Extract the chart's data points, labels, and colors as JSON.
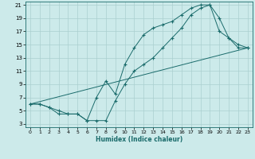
{
  "xlabel": "Humidex (Indice chaleur)",
  "bg_color": "#cceaea",
  "grid_color": "#aacfcf",
  "line_color": "#1a6b6b",
  "xlim": [
    -0.5,
    23.5
  ],
  "ylim": [
    2.5,
    21.5
  ],
  "xticks": [
    0,
    1,
    2,
    3,
    4,
    5,
    6,
    7,
    8,
    9,
    10,
    11,
    12,
    13,
    14,
    15,
    16,
    17,
    18,
    19,
    20,
    21,
    22,
    23
  ],
  "yticks": [
    3,
    5,
    7,
    9,
    11,
    13,
    15,
    17,
    19,
    21
  ],
  "line1_x": [
    0,
    1,
    2,
    3,
    4,
    5,
    6,
    7,
    8,
    9,
    10,
    11,
    12,
    13,
    14,
    15,
    16,
    17,
    18,
    19,
    20,
    21,
    22,
    23
  ],
  "line1_y": [
    6,
    6,
    5.5,
    4.5,
    4.5,
    4.5,
    3.5,
    7.0,
    9.5,
    7.5,
    12,
    14.5,
    16.5,
    17.5,
    18,
    18.5,
    19.5,
    20.5,
    21,
    21,
    17,
    16,
    15,
    14.5
  ],
  "line2_x": [
    0,
    1,
    2,
    3,
    4,
    5,
    6,
    7,
    8,
    9,
    10,
    11,
    12,
    13,
    14,
    15,
    16,
    17,
    18,
    19,
    20,
    21,
    22,
    23
  ],
  "line2_y": [
    6,
    6,
    5.5,
    5,
    4.5,
    4.5,
    3.5,
    3.5,
    3.5,
    6.5,
    9,
    11,
    12,
    13,
    14.5,
    16,
    17.5,
    19.5,
    20.5,
    21,
    19,
    16,
    14.5,
    14.5
  ],
  "line3_x": [
    0,
    23
  ],
  "line3_y": [
    6,
    14.5
  ]
}
